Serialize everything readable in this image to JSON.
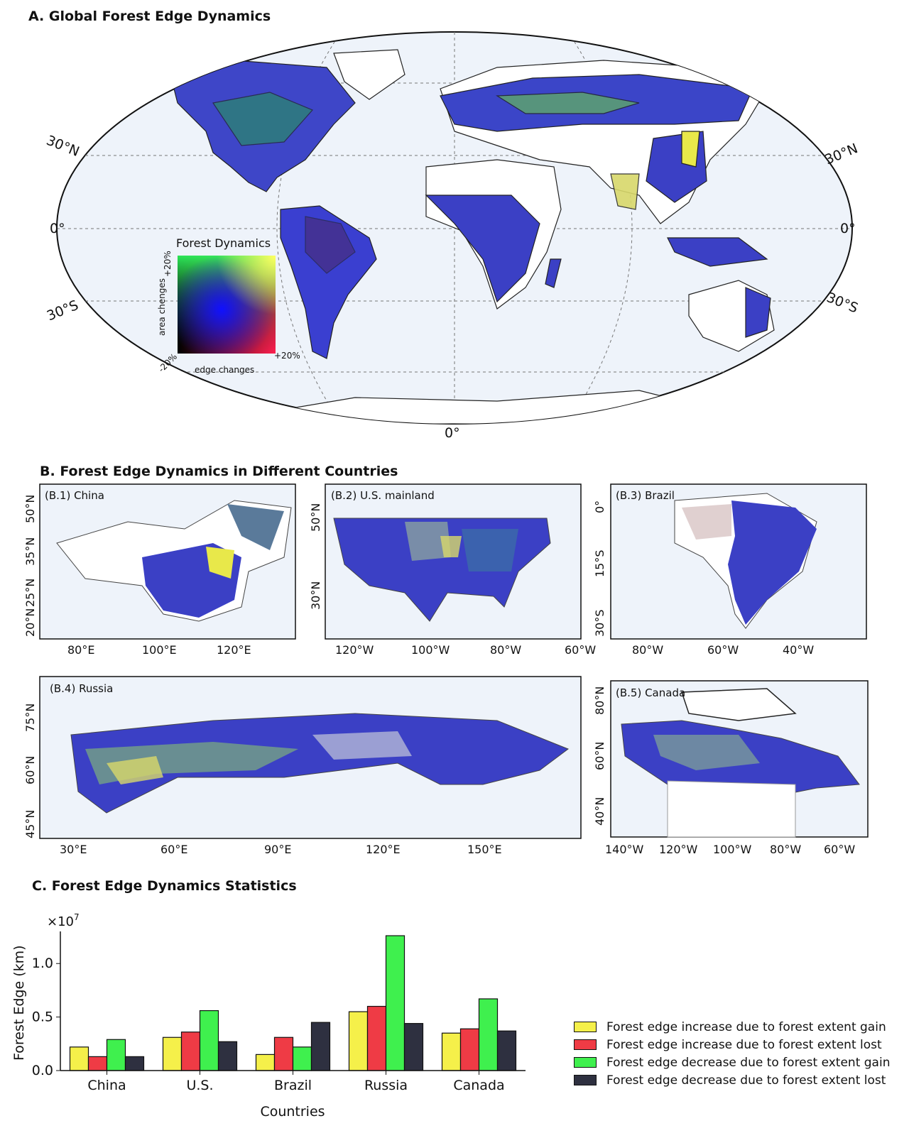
{
  "panel_a": {
    "title": "A. Global Forest Edge Dynamics",
    "lat_labels_left": [
      "30°N",
      "0°",
      "30°S"
    ],
    "lat_labels_right": [
      "30°N",
      "0°",
      "30°S"
    ],
    "lon_label": "0°",
    "colormap": {
      "title": "Forest Dynamics",
      "y_label": "area chenges",
      "y_max": "+20%",
      "x_label": "edge changes",
      "x_max": "+20%",
      "origin": "-20%"
    }
  },
  "panel_b": {
    "title": "B. Forest Edge Dynamics in Different Countries",
    "maps": [
      {
        "label": "(B.1) China",
        "x_ticks": [
          "80°E",
          "100°E",
          "120°E"
        ],
        "y_ticks": [
          "50°N",
          "35°N",
          "25°N",
          "20°N"
        ]
      },
      {
        "label": "(B.2) U.S. mainland",
        "x_ticks": [
          "120°W",
          "100°W",
          "80°W",
          "60°W"
        ],
        "y_ticks": [
          "50°N",
          "30°N"
        ]
      },
      {
        "label": "(B.3) Brazil",
        "x_ticks": [
          "80°W",
          "60°W",
          "40°W"
        ],
        "y_ticks": [
          "0°",
          "15°S",
          "30°S"
        ]
      },
      {
        "label": "(B.4) Russia",
        "x_ticks": [
          "30°E",
          "60°E",
          "90°E",
          "120°E",
          "150°E"
        ],
        "y_ticks": [
          "75°N",
          "60°N",
          "45°N"
        ]
      },
      {
        "label": "(B.5) Canada",
        "x_ticks": [
          "140°W",
          "120°W",
          "100°W",
          "80°W",
          "60°W"
        ],
        "y_ticks": [
          "80°N",
          "60°N",
          "40°N"
        ]
      }
    ]
  },
  "panel_c": {
    "title": "C. Forest Edge Dynamics Statistics"
  },
  "colors": {
    "increase_gain": "#f5f04a",
    "increase_lost": "#ef3b45",
    "decrease_gain": "#3ff04e",
    "decrease_lost": "#2e3040"
  },
  "chart_data": {
    "type": "bar",
    "xlabel": "Countries",
    "ylabel": "Forest Edge (km)",
    "y_multiplier": "×10",
    "y_multiplier_exp": "7",
    "ylim": [
      0,
      1.3
    ],
    "yticks": [
      "0.0",
      "0.5",
      "1.0"
    ],
    "categories": [
      "China",
      "U.S.",
      "Brazil",
      "Russia",
      "Canada"
    ],
    "series": [
      {
        "name": "Forest edge increase due to forest extent gain",
        "values": [
          0.22,
          0.31,
          0.15,
          0.55,
          0.35
        ]
      },
      {
        "name": "Forest edge increase due to forest extent lost",
        "values": [
          0.13,
          0.36,
          0.31,
          0.6,
          0.39
        ]
      },
      {
        "name": "Forest edge decrease due to forest extent gain",
        "values": [
          0.29,
          0.56,
          0.22,
          1.26,
          0.67
        ]
      },
      {
        "name": "Forest edge decrease due to forest extent lost",
        "values": [
          0.13,
          0.27,
          0.45,
          0.44,
          0.37
        ]
      }
    ],
    "legend_position": "right"
  }
}
